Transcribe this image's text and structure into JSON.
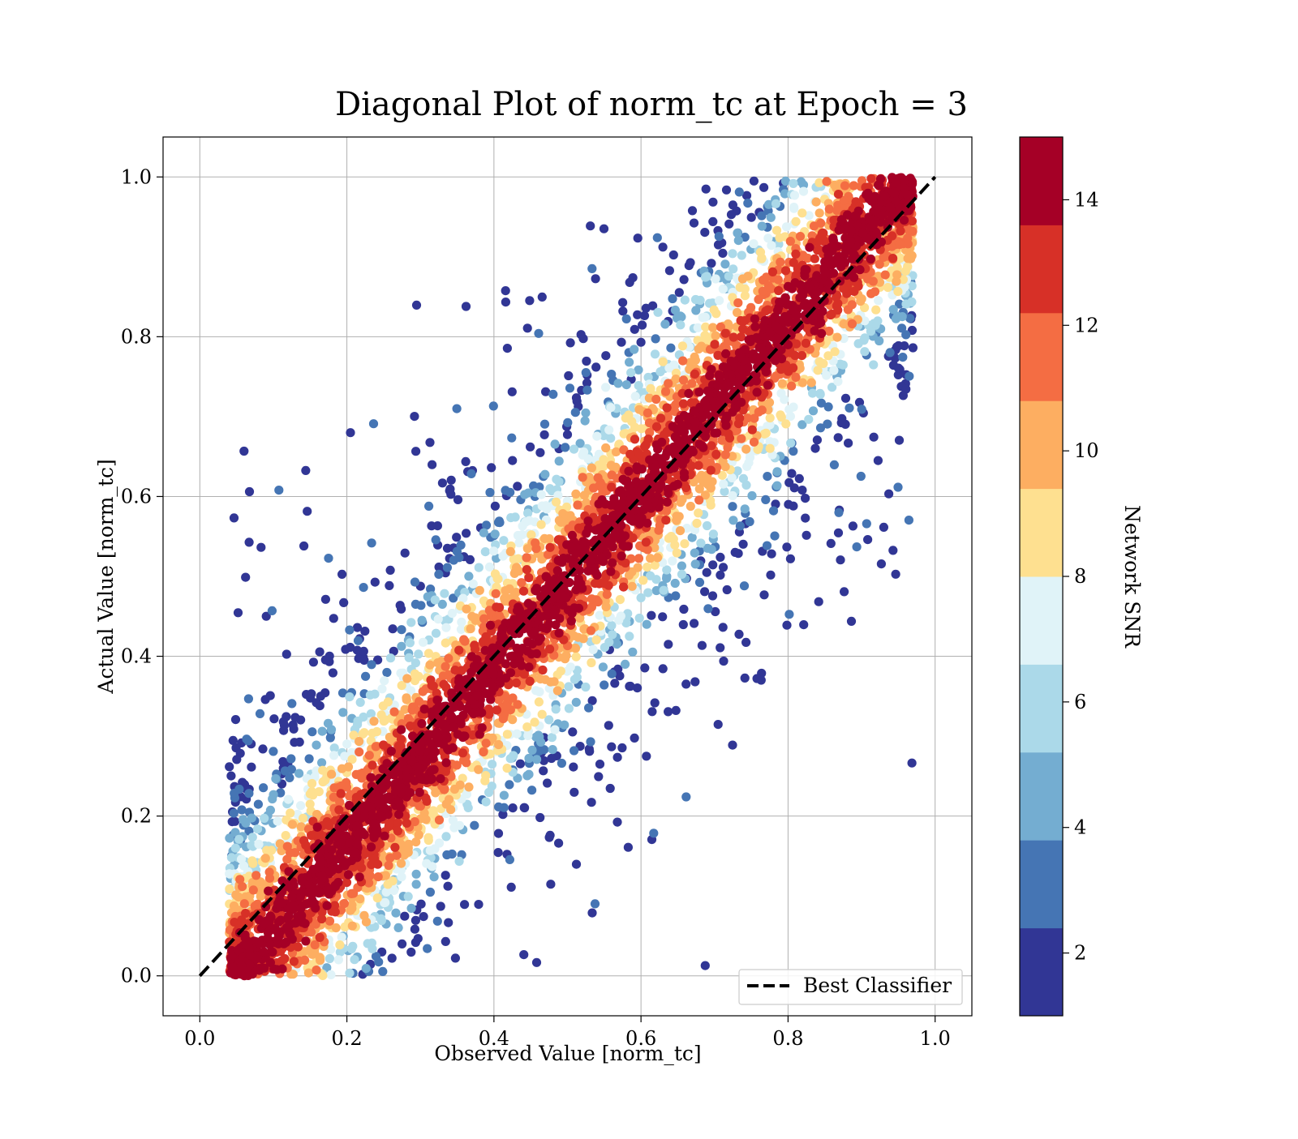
{
  "chart_data": {
    "type": "scatter",
    "title": "Diagonal Plot of norm_tc at Epoch = 3",
    "xlabel": "Observed Value [norm_tc]",
    "ylabel": "Actual Value [norm_tc]",
    "xlim": [
      -0.05,
      1.05
    ],
    "ylim": [
      -0.05,
      1.05
    ],
    "x_ticks": [
      "0.0",
      "0.2",
      "0.4",
      "0.6",
      "0.8",
      "1.0"
    ],
    "y_ticks": [
      "0.0",
      "0.2",
      "0.4",
      "0.6",
      "0.8",
      "1.0"
    ],
    "grid": true,
    "points_description_note": null,
    "scatter_model": {
      "x_range": [
        0.04,
        0.97
      ],
      "y_range": [
        0.0,
        1.0
      ],
      "approx_point_count": 6000,
      "color_by": "Network SNR"
    },
    "reference_line": {
      "label": "Best Classifier",
      "x": [
        0.0,
        1.0
      ],
      "y": [
        0.0,
        1.0
      ],
      "style": "dashed",
      "color": "#000000"
    },
    "legend": {
      "entries": [
        "Best Classifier"
      ],
      "placement": "lower-right"
    },
    "colorbar": {
      "label": "Network SNR",
      "range": [
        1,
        15
      ],
      "ticks": [
        "2",
        "4",
        "6",
        "8",
        "10",
        "12",
        "14"
      ],
      "bins": [
        "#313695",
        "#4575b4",
        "#74add1",
        "#abd9e9",
        "#e0f3f8",
        "#fee090",
        "#fdae61",
        "#f46d43",
        "#d73027",
        "#a50026"
      ]
    }
  }
}
